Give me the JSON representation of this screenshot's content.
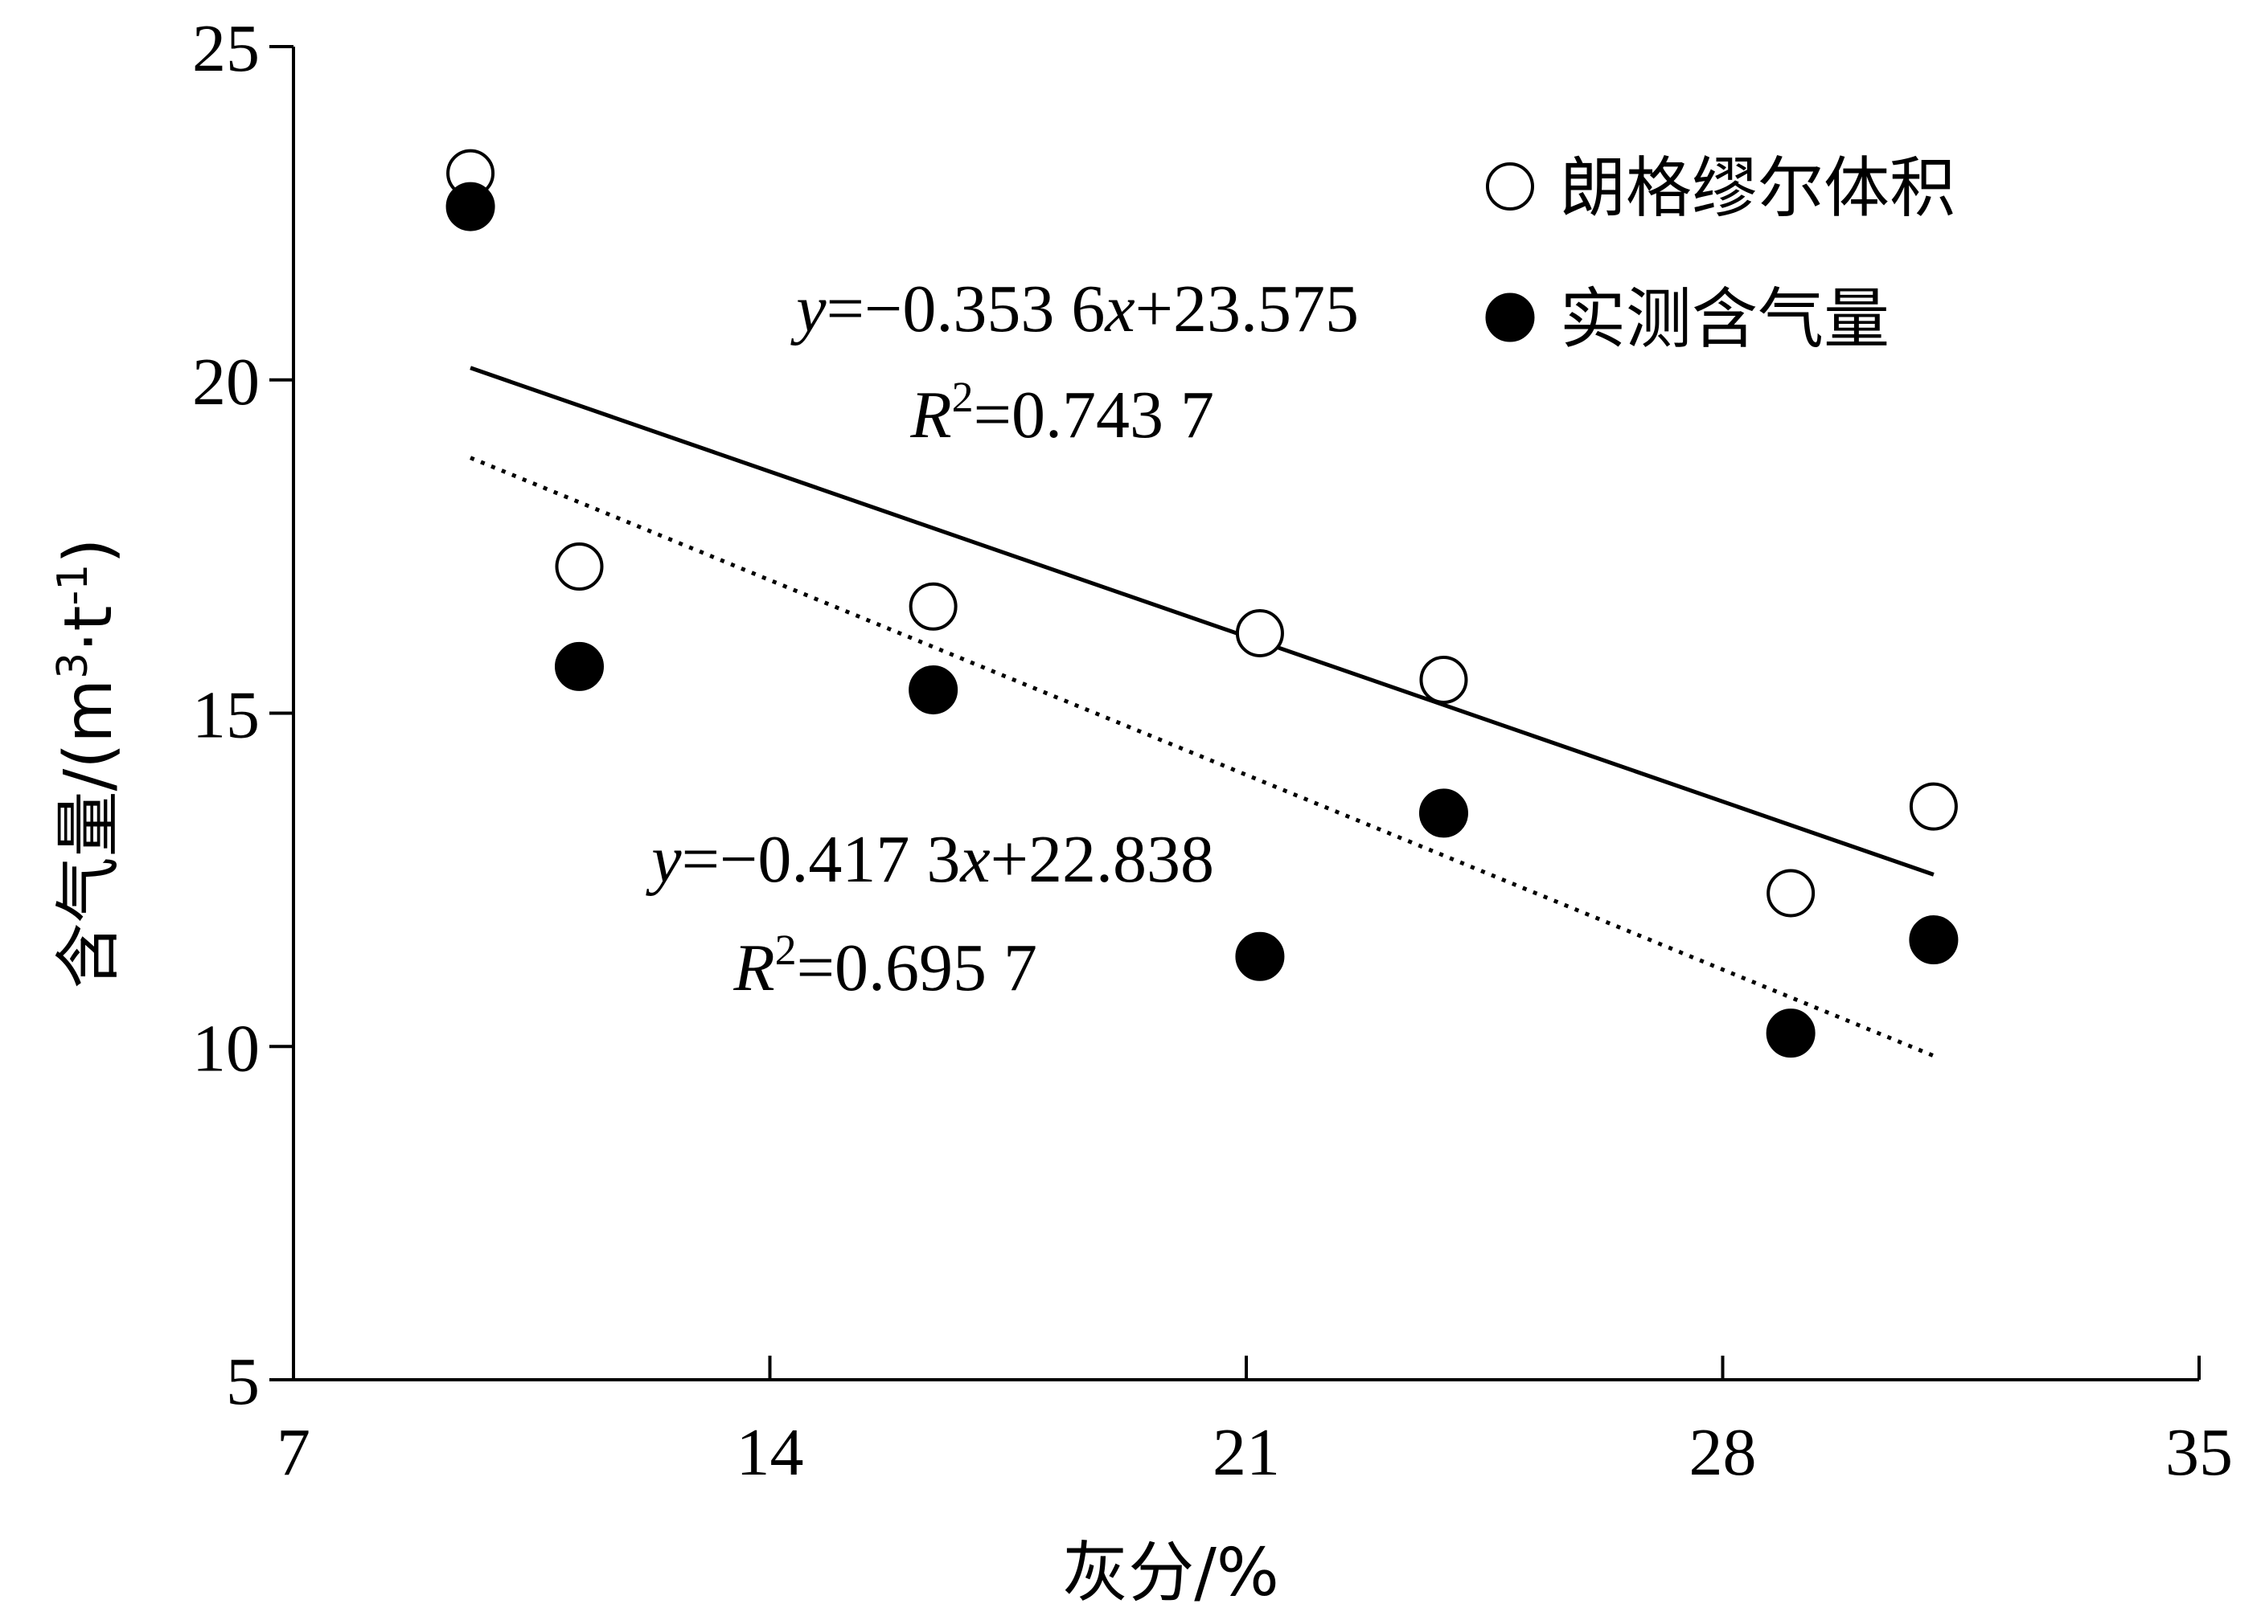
{
  "chart_data": {
    "type": "scatter",
    "xlabel": "灰分/%",
    "ylabel": "含气量/(m³·t⁻¹)",
    "ylabel_parts": {
      "base": "含气量/(m",
      "sup1": "3",
      "mid": "·t",
      "sup2": "-1",
      "end": ")"
    },
    "xlim": [
      7,
      35
    ],
    "ylim": [
      5,
      25
    ],
    "xticks": [
      7,
      14,
      21,
      28,
      35
    ],
    "yticks": [
      5,
      10,
      15,
      20,
      25
    ],
    "grid": false,
    "legend_position": "top-right",
    "series": [
      {
        "name": "朗格缪尔体积",
        "marker": "open-circle",
        "x": [
          9.6,
          11.2,
          16.4,
          21.2,
          23.9,
          29.0,
          31.1
        ],
        "y": [
          23.1,
          17.2,
          16.6,
          16.2,
          15.5,
          12.3,
          13.6
        ]
      },
      {
        "name": "实测含气量",
        "marker": "filled-circle",
        "x": [
          9.6,
          11.2,
          16.4,
          21.2,
          23.9,
          29.0,
          31.1
        ],
        "y": [
          22.6,
          15.7,
          15.35,
          11.35,
          13.5,
          10.2,
          11.6
        ]
      }
    ],
    "trendlines": [
      {
        "series": "朗格缪尔体积",
        "style": "solid",
        "slope": -0.3536,
        "intercept": 23.575,
        "x_range": [
          9.6,
          31.1
        ],
        "equation": {
          "y": "y",
          "eq1": "=−0.353 6",
          "x": "x",
          "eq2": "+23.575"
        },
        "r2": {
          "r": "R",
          "sup": "2",
          "val": "=0.743 7"
        }
      },
      {
        "series": "实测含气量",
        "style": "dotted",
        "slope": -0.4173,
        "intercept": 22.838,
        "x_range": [
          9.6,
          31.1
        ],
        "equation": {
          "y": "y",
          "eq1": "=−0.417 3",
          "x": "x",
          "eq2": "+22.838"
        },
        "r2": {
          "r": "R",
          "sup": "2",
          "val": "=0.695 7"
        }
      }
    ]
  }
}
